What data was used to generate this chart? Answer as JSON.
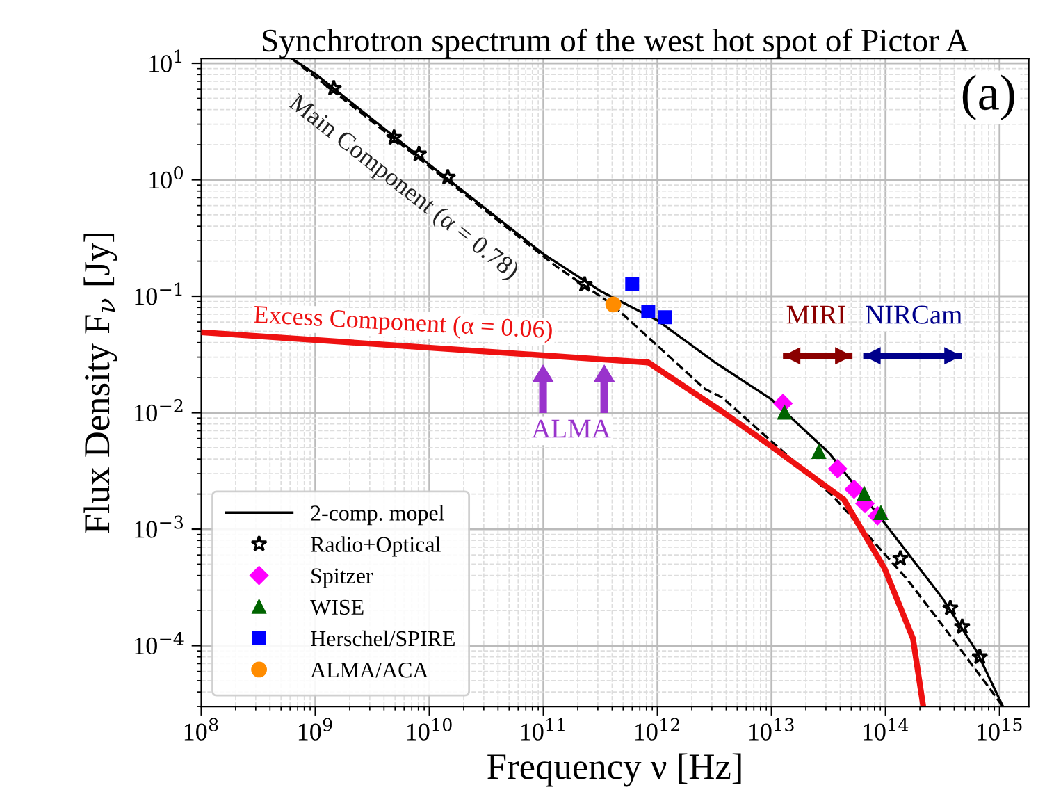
{
  "chart_data": {
    "type": "line",
    "title": "Synchrotron spectrum of the west hot spot of Pictor A",
    "xlabel": "Frequency ν [Hz]",
    "ylabel": "Flux Density F$_{ν}$ [Jy]",
    "log": "xy",
    "grid": true,
    "legend": "bottom left",
    "xlim": [
      100000000.0,
      1800000000000000.0
    ],
    "ylim": [
      3e-05,
      11
    ],
    "xticks": [
      {
        "value": 100000000.0,
        "label": "10$^{8}$"
      },
      {
        "value": 1000000000.0,
        "label": "10$^{9}$"
      },
      {
        "value": 10000000000.0,
        "label": "10$^{10}$"
      },
      {
        "value": 100000000000.0,
        "label": "10$^{11}$"
      },
      {
        "value": 1000000000000.0,
        "label": "10$^{12}$"
      },
      {
        "value": 10000000000000.0,
        "label": "10$^{13}$"
      },
      {
        "value": 100000000000000.0,
        "label": "10$^{14}$"
      },
      {
        "value": 1000000000000000.0,
        "label": "10$^{15}$"
      }
    ],
    "yticks": [
      {
        "value": 0.0001,
        "label": "10$^{−4}$"
      },
      {
        "value": 0.001,
        "label": "10$^{−3}$"
      },
      {
        "value": 0.01,
        "label": "10$^{−2}$"
      },
      {
        "value": 0.1,
        "label": "10$^{−1}$"
      },
      {
        "value": 1,
        "label": "10$^{0}$"
      },
      {
        "value": 10,
        "label": "10$^{1}$"
      }
    ],
    "series": [
      {
        "name": "2-comp. mopel",
        "color": "#000000",
        "line_style": "solid",
        "marker": "none",
        "x": [
          620000000.0,
          1000000000.0,
          10000000000.0,
          100000000000.0,
          320000000000.0,
          1000000000000.0,
          3200000000000.0,
          10000000000000.0,
          32000000000000.0,
          100000000000000.0,
          320000000000000.0,
          630000000000000.0,
          1070000000000000.0
        ],
        "values": [
          11,
          8.1,
          1.35,
          0.23,
          0.11,
          0.062,
          0.027,
          0.013,
          0.0045,
          0.0011,
          0.00025,
          8.9e-05,
          3e-05
        ]
      },
      {
        "color": "#000000",
        "line_style": "dashed",
        "marker": "none",
        "x": [
          620000000.0,
          10000000000.0,
          130000000000.0,
          400000000000.0,
          2600000000000.0,
          3700000000000.0,
          35000000000000.0,
          155000000000000.0,
          400000000000000.0,
          1070000000000000.0
        ],
        "values": [
          11,
          1.3,
          0.18,
          0.085,
          0.016,
          0.0135,
          0.0019,
          0.00037,
          0.00011,
          3e-05
        ]
      },
      {
        "color": "#ee1111",
        "line_style": "solid",
        "marker": "none",
        "x": [
          100000000.0,
          830000000000.0,
          3700000000000.0,
          9300000000000.0,
          43000000000000.0,
          98000000000000.0,
          174000000000000.0,
          214000000000000.0
        ],
        "values": [
          0.049,
          0.027,
          0.0102,
          0.0054,
          0.0018,
          0.00046,
          0.000115,
          3e-05
        ]
      },
      {
        "name": "Radio+Optical",
        "type": "scatter",
        "color": "#000000",
        "marker": "star",
        "x": [
          1450000000.0,
          4900000000.0,
          8100000000.0,
          14500000000.0,
          230000000000.0,
          135000000000000.0,
          370000000000000.0,
          470000000000000.0,
          670000000000000.0
        ],
        "values": [
          6.1,
          2.3,
          1.66,
          1.05,
          0.126,
          0.00056,
          0.00021,
          0.000145,
          8e-05
        ]
      },
      {
        "name": "Spitzer",
        "type": "scatter",
        "color": "#ff00ff",
        "marker": "diamond",
        "x": [
          12600000000000.0,
          38000000000000.0,
          53000000000000.0,
          66000000000000.0,
          85000000000000.0
        ],
        "values": [
          0.012,
          0.0033,
          0.0022,
          0.00166,
          0.0013
        ]
      },
      {
        "name": "WISE",
        "type": "scatter",
        "color": "#006400",
        "marker": "triangle",
        "x": [
          13000000000000.0,
          26000000000000.0,
          65000000000000.0,
          91000000000000.0
        ],
        "values": [
          0.01,
          0.0046,
          0.002,
          0.00137
        ]
      },
      {
        "name": "Herschel/SPIRE",
        "type": "scatter",
        "color": "#0000ff",
        "marker": "square",
        "x": [
          600000000000.0,
          830000000000.0,
          1170000000000.0
        ],
        "values": [
          0.128,
          0.074,
          0.066
        ]
      },
      {
        "name": "ALMA/ACA",
        "type": "scatter",
        "color": "#ff8c00",
        "marker": "circle",
        "x": [
          410000000000.0
        ],
        "values": [
          0.085
        ]
      }
    ],
    "annotations": [
      "Main Component (α = 0.78)",
      "Excess Component (α = 0.06)",
      "ALMA",
      "MIRI",
      "NIRCam",
      "(a)"
    ]
  }
}
